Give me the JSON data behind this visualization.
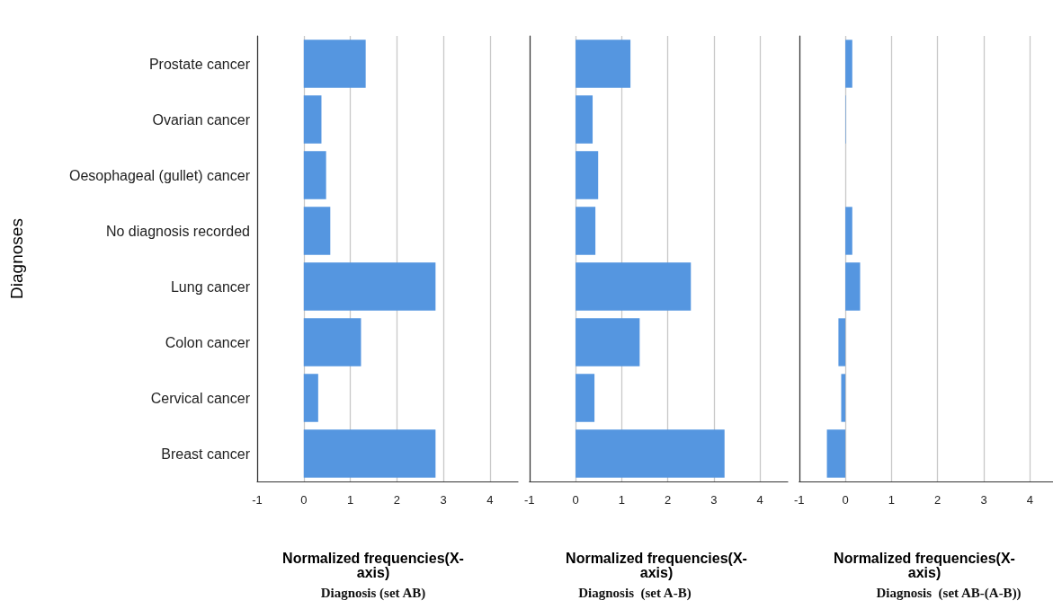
{
  "chart_data": [
    {
      "type": "bar",
      "orientation": "horizontal",
      "title": "Diagnosis (set AB)",
      "xlabel": "Normalized frequencies(X-axis)",
      "ylabel": "Diagnoses",
      "categories": [
        "Prostate cancer",
        "Ovarian cancer",
        "Oesophageal (gullet) cancer",
        "No diagnosis recorded",
        "Lung cancer",
        "Colon cancer",
        "Cervical cancer",
        "Breast cancer"
      ],
      "values": [
        1.33,
        0.38,
        0.48,
        0.57,
        2.83,
        1.23,
        0.31,
        2.83
      ],
      "color": "#5596e0",
      "xlim": [
        -1,
        4.6
      ],
      "xticks": [
        -1,
        0,
        1,
        2,
        3,
        4
      ],
      "grid": "x"
    },
    {
      "type": "bar",
      "orientation": "horizontal",
      "title": "Diagnosis  (set A-B)",
      "xlabel": "Normalized frequencies(X-axis)",
      "categories": [
        null,
        null,
        null,
        null,
        null,
        null,
        null,
        null
      ],
      "values": [
        1.19,
        0.37,
        0.49,
        0.43,
        2.5,
        1.39,
        0.41,
        3.23
      ],
      "color": "#5596e0",
      "xlim": [
        -1,
        4.6
      ],
      "xticks": [
        -1,
        0,
        1,
        2,
        3,
        4
      ],
      "grid": "x",
      "tick_labels": "x"
    },
    {
      "type": "bar",
      "orientation": "horizontal",
      "title": "Diagnosis  (set AB-(A-B))",
      "xlabel": "Normalized frequencies(X-axis)",
      "categories": [
        null,
        null,
        null,
        null,
        null,
        null,
        null,
        null
      ],
      "values": [
        0.15,
        0.01,
        0,
        0.15,
        0.32,
        -0.15,
        -0.09,
        -0.4
      ],
      "color": "#5596e0",
      "xlim": [
        -1,
        4.5
      ],
      "xticks": [
        -1,
        0,
        1,
        2,
        3,
        4
      ],
      "grid": "x",
      "tick_labels": "x"
    }
  ]
}
